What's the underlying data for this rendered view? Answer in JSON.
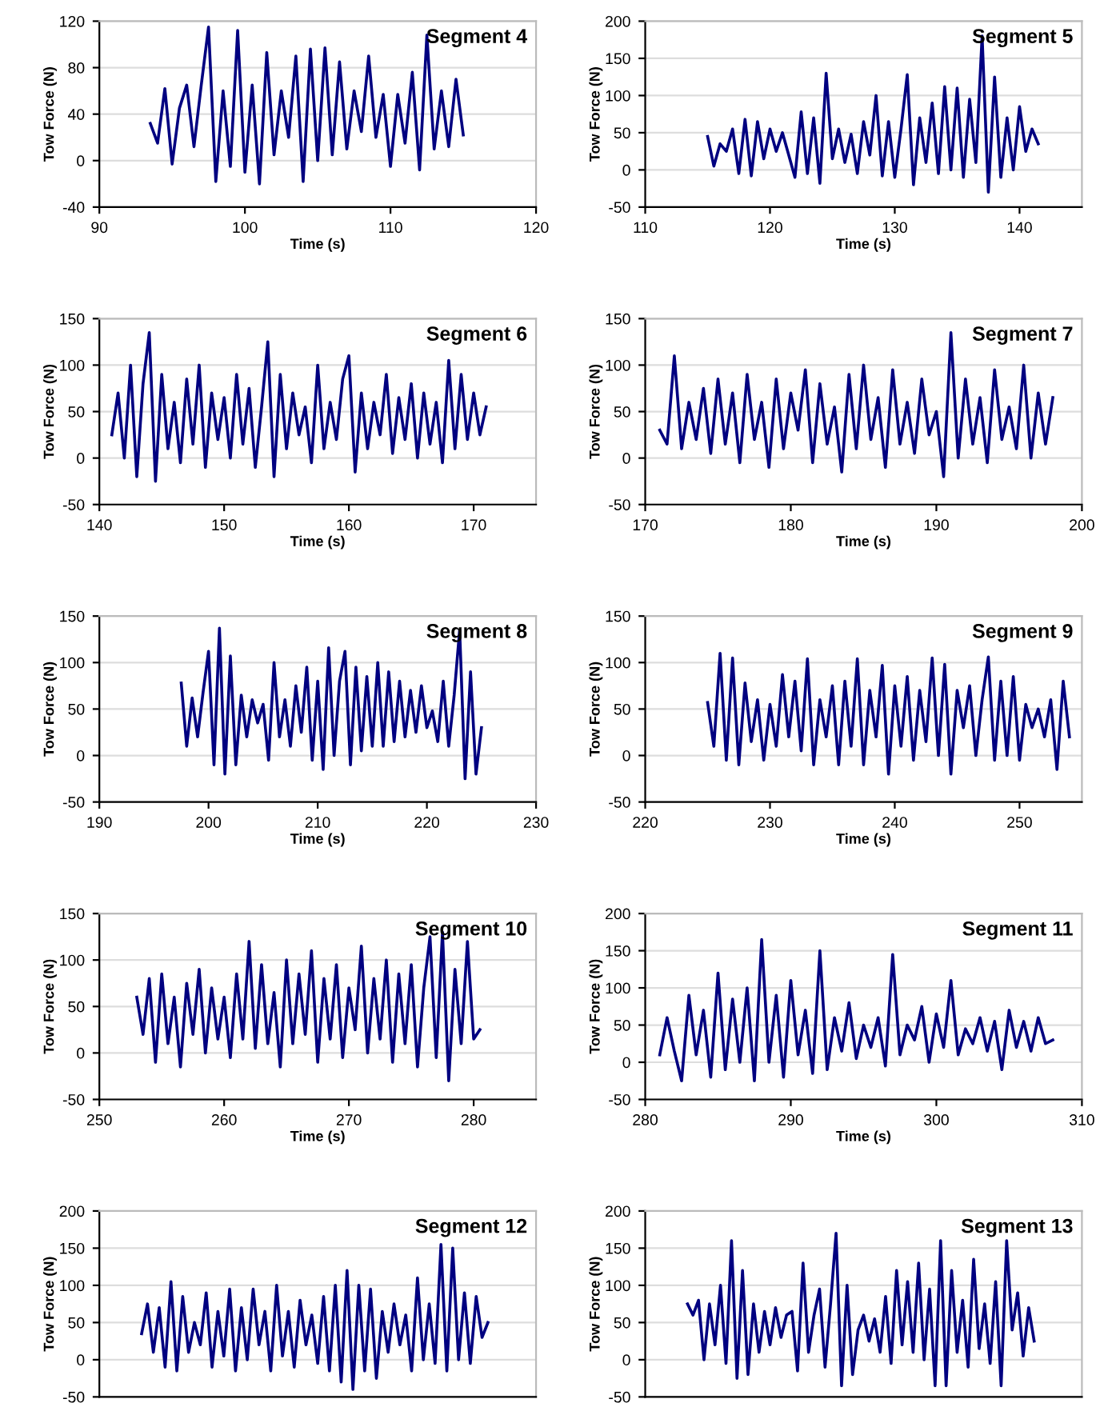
{
  "chart_data": [
    {
      "type": "line",
      "title": "Segment 4",
      "xlabel": "Time (s)",
      "ylabel": "Tow Force (N)",
      "xlim": [
        90,
        120
      ],
      "xticks": [
        90,
        100,
        110,
        120
      ],
      "ylim": [
        -40,
        120
      ],
      "yticks": [
        -40,
        0,
        40,
        80,
        120
      ],
      "grid": "y",
      "marker": "none",
      "line_style": "solid",
      "x": [
        93.5,
        94,
        94.5,
        95,
        95.5,
        96,
        96.5,
        97,
        97.5,
        98,
        98.5,
        99,
        99.5,
        100,
        100.5,
        101,
        101.5,
        102,
        102.5,
        103,
        103.5,
        104,
        104.5,
        105,
        105.5,
        106,
        106.5,
        107,
        107.5,
        108,
        108.5,
        109,
        109.5,
        110,
        110.5,
        111,
        111.5,
        112,
        112.5,
        113,
        113.5,
        114,
        114.5,
        115
      ],
      "series": [
        {
          "color": "#000080",
          "values": [
            32,
            15,
            62,
            -3,
            45,
            65,
            12,
            65,
            115,
            -18,
            60,
            -5,
            112,
            -10,
            65,
            -20,
            93,
            5,
            60,
            20,
            90,
            -18,
            96,
            0,
            97,
            5,
            85,
            10,
            60,
            25,
            90,
            20,
            57,
            -5,
            57,
            15,
            76,
            -8,
            108,
            10,
            60,
            12,
            70,
            22
          ]
        }
      ]
    },
    {
      "type": "line",
      "title": "Segment 5",
      "xlabel": "Time (s)",
      "ylabel": "Tow Force (N)",
      "xlim": [
        110,
        145
      ],
      "xticks": [
        110,
        120,
        130,
        140
      ],
      "ylim": [
        -50,
        200
      ],
      "yticks": [
        -50,
        0,
        50,
        100,
        150,
        200
      ],
      "grid": "y",
      "marker": "none",
      "line_style": "solid",
      "x": [
        115,
        115.5,
        116,
        116.5,
        117,
        117.5,
        118,
        118.5,
        119,
        119.5,
        120,
        120.5,
        121,
        121.5,
        122,
        122.5,
        123,
        123.5,
        124,
        124.5,
        125,
        125.5,
        126,
        126.5,
        127,
        127.5,
        128,
        128.5,
        129,
        129.5,
        130,
        130.5,
        131,
        131.5,
        132,
        132.5,
        133,
        133.5,
        134,
        134.5,
        135,
        135.5,
        136,
        136.5,
        137,
        137.5,
        138,
        138.5,
        139,
        139.5,
        140,
        140.5,
        141,
        141.5
      ],
      "series": [
        {
          "color": "#000080",
          "values": [
            45,
            5,
            35,
            25,
            55,
            -5,
            68,
            -8,
            65,
            15,
            55,
            25,
            50,
            20,
            -10,
            78,
            -5,
            70,
            -18,
            130,
            15,
            55,
            10,
            48,
            -5,
            65,
            20,
            100,
            -8,
            65,
            -10,
            55,
            128,
            -20,
            70,
            10,
            90,
            -5,
            112,
            0,
            110,
            -10,
            95,
            10,
            180,
            -30,
            125,
            -10,
            70,
            0,
            85,
            25,
            55,
            35
          ]
        }
      ]
    },
    {
      "type": "line",
      "title": "Segment 6",
      "xlabel": "Time (s)",
      "ylabel": "Tow Force (N)",
      "xlim": [
        140,
        175
      ],
      "xticks": [
        140,
        150,
        160,
        170
      ],
      "ylim": [
        -50,
        150
      ],
      "yticks": [
        -50,
        0,
        50,
        100,
        150
      ],
      "grid": "y",
      "marker": "none",
      "line_style": "solid",
      "x": [
        141,
        141.5,
        142,
        142.5,
        143,
        143.5,
        144,
        144.5,
        145,
        145.5,
        146,
        146.5,
        147,
        147.5,
        148,
        148.5,
        149,
        149.5,
        150,
        150.5,
        151,
        151.5,
        152,
        152.5,
        153,
        153.5,
        154,
        154.5,
        155,
        155.5,
        156,
        156.5,
        157,
        157.5,
        158,
        158.5,
        159,
        159.5,
        160,
        160.5,
        161,
        161.5,
        162,
        162.5,
        163,
        163.5,
        164,
        164.5,
        165,
        165.5,
        166,
        166.5,
        167,
        167.5,
        168,
        168.5,
        169,
        169.5,
        170,
        170.5,
        171
      ],
      "series": [
        {
          "color": "#000080",
          "values": [
            25,
            70,
            0,
            100,
            -20,
            80,
            135,
            -25,
            90,
            10,
            60,
            -5,
            85,
            15,
            100,
            -10,
            70,
            20,
            65,
            0,
            90,
            15,
            75,
            -10,
            55,
            125,
            -20,
            90,
            10,
            70,
            25,
            55,
            -5,
            100,
            10,
            60,
            20,
            85,
            110,
            -15,
            70,
            10,
            60,
            25,
            90,
            5,
            65,
            20,
            80,
            0,
            70,
            15,
            60,
            -5,
            105,
            10,
            90,
            20,
            70,
            25,
            55
          ]
        }
      ]
    },
    {
      "type": "line",
      "title": "Segment 7",
      "xlabel": "Time (s)",
      "ylabel": "Tow Force (N)",
      "xlim": [
        170,
        200
      ],
      "xticks": [
        170,
        180,
        190,
        200
      ],
      "ylim": [
        -50,
        150
      ],
      "yticks": [
        -50,
        0,
        50,
        100,
        150
      ],
      "grid": "y",
      "marker": "none",
      "line_style": "solid",
      "x": [
        171,
        171.5,
        172,
        172.5,
        173,
        173.5,
        174,
        174.5,
        175,
        175.5,
        176,
        176.5,
        177,
        177.5,
        178,
        178.5,
        179,
        179.5,
        180,
        180.5,
        181,
        181.5,
        182,
        182.5,
        183,
        183.5,
        184,
        184.5,
        185,
        185.5,
        186,
        186.5,
        187,
        187.5,
        188,
        188.5,
        189,
        189.5,
        190,
        190.5,
        191,
        191.5,
        192,
        192.5,
        193,
        193.5,
        194,
        194.5,
        195,
        195.5,
        196,
        196.5,
        197,
        197.5,
        198
      ],
      "series": [
        {
          "color": "#000080",
          "values": [
            30,
            15,
            110,
            10,
            60,
            20,
            75,
            5,
            85,
            15,
            70,
            -5,
            90,
            20,
            60,
            -10,
            85,
            10,
            70,
            30,
            95,
            -5,
            80,
            15,
            55,
            -15,
            90,
            10,
            100,
            20,
            65,
            -10,
            95,
            15,
            60,
            5,
            85,
            25,
            50,
            -20,
            135,
            0,
            85,
            15,
            65,
            -5,
            95,
            20,
            55,
            10,
            100,
            0,
            70,
            15,
            65
          ]
        }
      ]
    },
    {
      "type": "line",
      "title": "Segment 8",
      "xlabel": "Time (s)",
      "ylabel": "Tow Force (N)",
      "xlim": [
        190,
        230
      ],
      "xticks": [
        190,
        200,
        210,
        220,
        230
      ],
      "ylim": [
        -50,
        150
      ],
      "yticks": [
        -50,
        0,
        50,
        100,
        150
      ],
      "grid": "y",
      "marker": "none",
      "line_style": "solid",
      "x": [
        197.5,
        198,
        198.5,
        199,
        199.5,
        200,
        200.5,
        201,
        201.5,
        202,
        202.5,
        203,
        203.5,
        204,
        204.5,
        205,
        205.5,
        206,
        206.5,
        207,
        207.5,
        208,
        208.5,
        209,
        209.5,
        210,
        210.5,
        211,
        211.5,
        212,
        212.5,
        213,
        213.5,
        214,
        214.5,
        215,
        215.5,
        216,
        216.5,
        217,
        217.5,
        218,
        218.5,
        219,
        219.5,
        220,
        220.5,
        221,
        221.5,
        222,
        222.5,
        223,
        223.5,
        224,
        224.5,
        225
      ],
      "series": [
        {
          "color": "#000080",
          "values": [
            78,
            10,
            62,
            20,
            68,
            112,
            -10,
            137,
            -20,
            107,
            -10,
            65,
            20,
            60,
            35,
            55,
            -5,
            100,
            20,
            60,
            10,
            75,
            25,
            95,
            -5,
            80,
            -15,
            116,
            0,
            80,
            112,
            -10,
            95,
            5,
            85,
            10,
            100,
            10,
            90,
            15,
            80,
            20,
            70,
            25,
            75,
            30,
            48,
            15,
            80,
            10,
            65,
            135,
            -25,
            90,
            -20,
            30
          ]
        }
      ]
    },
    {
      "type": "line",
      "title": "Segment 9",
      "xlabel": "Time (s)",
      "ylabel": "Tow Force (N)",
      "xlim": [
        220,
        255
      ],
      "xticks": [
        220,
        230,
        240,
        250
      ],
      "ylim": [
        -50,
        150
      ],
      "yticks": [
        -50,
        0,
        50,
        100,
        150
      ],
      "grid": "y",
      "marker": "none",
      "line_style": "solid",
      "x": [
        225,
        225.5,
        226,
        226.5,
        227,
        227.5,
        228,
        228.5,
        229,
        229.5,
        230,
        230.5,
        231,
        231.5,
        232,
        232.5,
        233,
        233.5,
        234,
        234.5,
        235,
        235.5,
        236,
        236.5,
        237,
        237.5,
        238,
        238.5,
        239,
        239.5,
        240,
        240.5,
        241,
        241.5,
        242,
        242.5,
        243,
        243.5,
        244,
        244.5,
        245,
        245.5,
        246,
        246.5,
        247,
        247.5,
        248,
        248.5,
        249,
        249.5,
        250,
        250.5,
        251,
        251.5,
        252,
        252.5,
        253,
        253.5,
        254
      ],
      "series": [
        {
          "color": "#000080",
          "values": [
            57,
            10,
            110,
            -5,
            105,
            -10,
            78,
            15,
            60,
            -5,
            55,
            10,
            87,
            20,
            80,
            5,
            104,
            -10,
            60,
            20,
            75,
            -10,
            80,
            10,
            104,
            -10,
            70,
            20,
            97,
            -20,
            75,
            10,
            85,
            -5,
            70,
            15,
            105,
            0,
            98,
            -20,
            70,
            30,
            75,
            0,
            60,
            106,
            -5,
            80,
            0,
            85,
            -5,
            55,
            30,
            50,
            20,
            60,
            -15,
            80,
            20
          ]
        }
      ]
    },
    {
      "type": "line",
      "title": "Segment 10",
      "xlabel": "Time (s)",
      "ylabel": "Tow Force (N)",
      "xlim": [
        250,
        285
      ],
      "xticks": [
        250,
        260,
        270,
        280
      ],
      "ylim": [
        -50,
        150
      ],
      "yticks": [
        -50,
        0,
        50,
        100,
        150
      ],
      "grid": "y",
      "marker": "none",
      "line_style": "solid",
      "x": [
        253,
        253.5,
        254,
        254.5,
        255,
        255.5,
        256,
        256.5,
        257,
        257.5,
        258,
        258.5,
        259,
        259.5,
        260,
        260.5,
        261,
        261.5,
        262,
        262.5,
        263,
        263.5,
        264,
        264.5,
        265,
        265.5,
        266,
        266.5,
        267,
        267.5,
        268,
        268.5,
        269,
        269.5,
        270,
        270.5,
        271,
        271.5,
        272,
        272.5,
        273,
        273.5,
        274,
        274.5,
        275,
        275.5,
        276,
        276.5,
        277,
        277.5,
        278,
        278.5,
        279,
        279.5,
        280,
        280.5
      ],
      "series": [
        {
          "color": "#000080",
          "values": [
            60,
            20,
            80,
            -10,
            85,
            10,
            60,
            -15,
            75,
            20,
            90,
            0,
            70,
            15,
            60,
            -5,
            85,
            15,
            120,
            5,
            95,
            10,
            65,
            -15,
            100,
            10,
            85,
            20,
            110,
            -10,
            80,
            15,
            95,
            -5,
            70,
            25,
            115,
            0,
            80,
            15,
            100,
            -10,
            85,
            10,
            95,
            -15,
            70,
            125,
            -5,
            130,
            -30,
            90,
            10,
            120,
            15,
            25
          ]
        }
      ]
    },
    {
      "type": "line",
      "title": "Segment 11",
      "xlabel": "Time (s)",
      "ylabel": "Tow Force (N)",
      "xlim": [
        280,
        310
      ],
      "xticks": [
        280,
        290,
        300,
        310
      ],
      "ylim": [
        -50,
        200
      ],
      "yticks": [
        -50,
        0,
        50,
        100,
        150,
        200
      ],
      "grid": "y",
      "marker": "none",
      "line_style": "solid",
      "x": [
        281,
        281.5,
        282,
        282.5,
        283,
        283.5,
        284,
        284.5,
        285,
        285.5,
        286,
        286.5,
        287,
        287.5,
        288,
        288.5,
        289,
        289.5,
        290,
        290.5,
        291,
        291.5,
        292,
        292.5,
        293,
        293.5,
        294,
        294.5,
        295,
        295.5,
        296,
        296.5,
        297,
        297.5,
        298,
        298.5,
        299,
        299.5,
        300,
        300.5,
        301,
        301.5,
        302,
        302.5,
        303,
        303.5,
        304,
        304.5,
        305,
        305.5,
        306,
        306.5,
        307,
        307.5,
        308
      ],
      "series": [
        {
          "color": "#000080",
          "values": [
            10,
            60,
            15,
            -25,
            90,
            10,
            70,
            -20,
            120,
            -10,
            85,
            0,
            100,
            -25,
            165,
            0,
            90,
            -20,
            110,
            10,
            70,
            -15,
            150,
            -10,
            60,
            15,
            80,
            5,
            50,
            20,
            60,
            -5,
            145,
            10,
            50,
            30,
            75,
            0,
            65,
            20,
            110,
            10,
            45,
            25,
            60,
            15,
            55,
            -10,
            70,
            20,
            55,
            15,
            60,
            25,
            30
          ]
        }
      ]
    },
    {
      "type": "line",
      "title": "Segment 12",
      "ylabel": "Tow Force (N)",
      "ylim": [
        -50,
        200
      ],
      "yticks": [
        -50,
        0,
        50,
        100,
        150,
        200
      ],
      "grid": "y",
      "marker": "none",
      "line_style": "solid",
      "tick_labels": "y",
      "categories": [
        null,
        null,
        null,
        null,
        null,
        null,
        null,
        null,
        null,
        null,
        null,
        null,
        null,
        null,
        null,
        null,
        null,
        null,
        null,
        null,
        null,
        null,
        null,
        null,
        null,
        null,
        null,
        null,
        null,
        null,
        null,
        null,
        null,
        null,
        null,
        null,
        null,
        null,
        null,
        null,
        null,
        null,
        null,
        null,
        null,
        null,
        null,
        null,
        null,
        null,
        null,
        null,
        null,
        null,
        null,
        null,
        null,
        null,
        null,
        null
      ],
      "series": [
        {
          "color": "#000080",
          "values": [
            35,
            75,
            10,
            70,
            -10,
            105,
            -15,
            85,
            10,
            50,
            20,
            90,
            -10,
            65,
            5,
            95,
            -15,
            70,
            0,
            95,
            20,
            65,
            -15,
            100,
            5,
            65,
            -10,
            80,
            20,
            60,
            -5,
            85,
            -15,
            100,
            -30,
            120,
            -40,
            100,
            -15,
            95,
            -25,
            65,
            10,
            75,
            20,
            60,
            -15,
            110,
            0,
            75,
            -5,
            155,
            -15,
            150,
            0,
            90,
            -5,
            85,
            30,
            50
          ]
        }
      ]
    },
    {
      "type": "line",
      "title": "Segment 13",
      "ylabel": "Tow Force (N)",
      "ylim": [
        -50,
        200
      ],
      "yticks": [
        -50,
        0,
        50,
        100,
        150,
        200
      ],
      "grid": "y",
      "marker": "none",
      "line_style": "solid",
      "tick_labels": "y",
      "categories": [
        null,
        null,
        null,
        null,
        null,
        null,
        null,
        null,
        null,
        null,
        null,
        null,
        null,
        null,
        null,
        null,
        null,
        null,
        null,
        null,
        null,
        null,
        null,
        null,
        null,
        null,
        null,
        null,
        null,
        null,
        null,
        null,
        null,
        null,
        null,
        null,
        null,
        null,
        null,
        null,
        null,
        null,
        null,
        null,
        null,
        null,
        null,
        null,
        null,
        null,
        null,
        null,
        null,
        null,
        null,
        null,
        null,
        null,
        null,
        null,
        null,
        null,
        null,
        null
      ],
      "series": [
        {
          "color": "#000080",
          "values": [
            75,
            60,
            80,
            0,
            75,
            20,
            100,
            -5,
            160,
            -25,
            120,
            -20,
            75,
            10,
            65,
            20,
            70,
            30,
            60,
            65,
            -15,
            130,
            10,
            60,
            95,
            -10,
            75,
            170,
            -35,
            100,
            -20,
            40,
            60,
            25,
            55,
            10,
            85,
            -5,
            120,
            20,
            105,
            10,
            130,
            0,
            95,
            -35,
            160,
            -35,
            120,
            10,
            80,
            -10,
            135,
            15,
            75,
            -5,
            105,
            -35,
            160,
            40,
            90,
            5,
            70,
            25
          ]
        }
      ]
    }
  ]
}
